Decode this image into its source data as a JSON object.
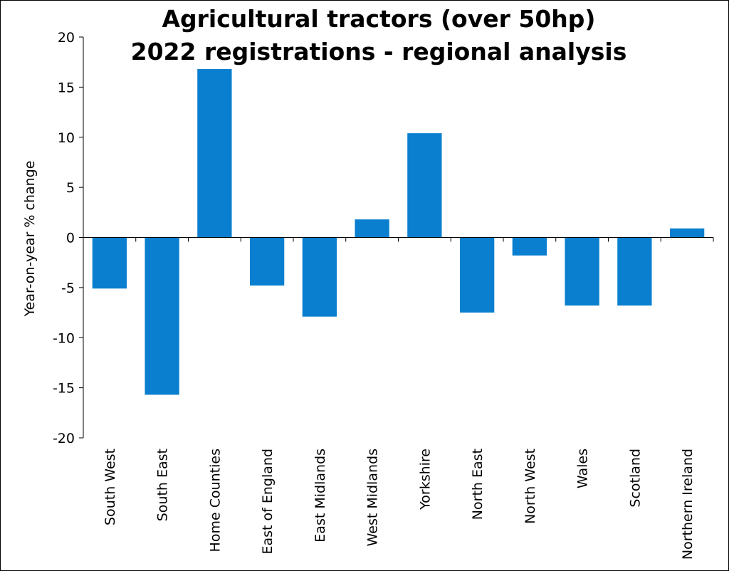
{
  "chart_data": {
    "type": "bar",
    "title_lines": [
      "Agricultural tractors (over 50hp)",
      "2022 registrations - regional analysis"
    ],
    "xlabel": "",
    "ylabel": "Year-on-year  % change",
    "ylim": [
      -20,
      20
    ],
    "yticks": [
      20,
      15,
      10,
      5,
      0,
      -5,
      -10,
      -15,
      -20
    ],
    "categories": [
      "South West",
      "South East",
      "Home Counties",
      "East of England",
      "East Midlands",
      "West Midlands",
      "Yorkshire",
      "North East",
      "North West",
      "Wales",
      "Scotland",
      "Northern Ireland"
    ],
    "values": [
      -5.1,
      -15.7,
      16.8,
      -4.8,
      -7.9,
      1.8,
      10.4,
      -7.5,
      -1.8,
      -6.8,
      -6.8,
      0.9
    ],
    "bar_color": "#0a7fcf",
    "grid": false,
    "legend": "none"
  }
}
